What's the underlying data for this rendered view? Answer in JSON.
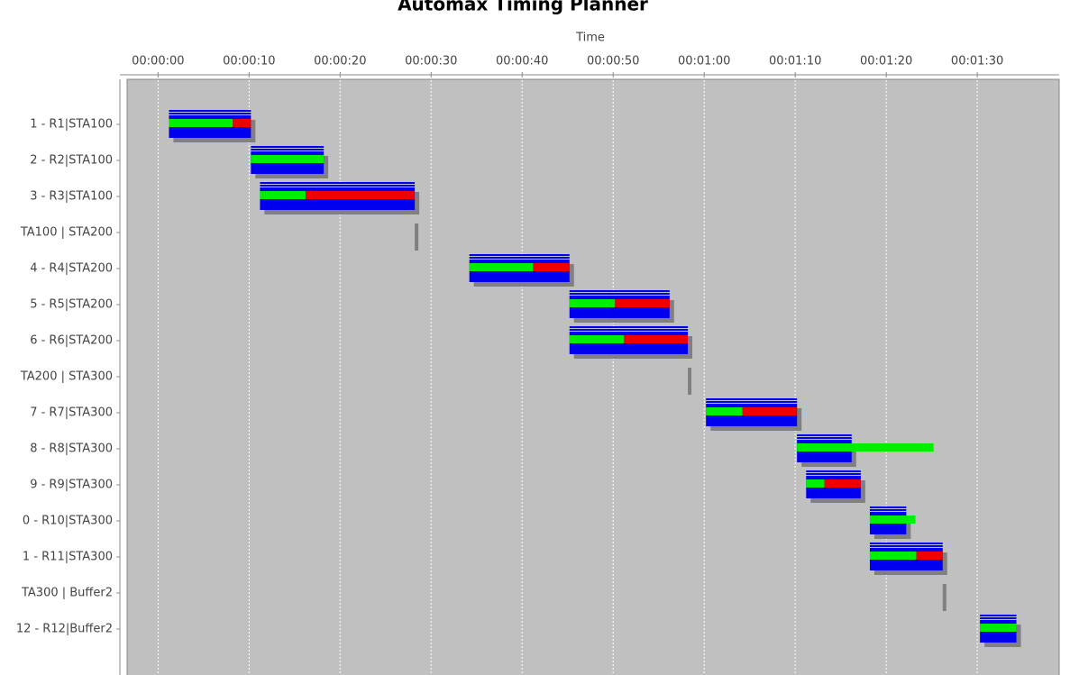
{
  "chart_data": {
    "type": "gantt",
    "title": "Automax Timing Planner",
    "x_label": "Time",
    "categories": [
      "1 - R1|STA100",
      "2 - R2|STA100",
      "3 - R3|STA100",
      "TA100 | STA200",
      "4 - R4|STA200",
      "5 - R5|STA200",
      "6 - R6|STA200",
      "TA200 | STA300",
      "7 - R7|STA300",
      "8 - R8|STA300",
      "9 - R9|STA300",
      "0 - R10|STA300",
      "1 - R11|STA300",
      "TA300 | Buffer2",
      "12 - R12|Buffer2"
    ],
    "starts": [
      1.2,
      10.2,
      11.2,
      28.4,
      34.2,
      45.2,
      45.2,
      58.4,
      60.2,
      70.2,
      71.2,
      78.2,
      78.2,
      86.4,
      90.3
    ],
    "ends": [
      10.2,
      18.2,
      28.2,
      28.4,
      45.2,
      56.2,
      58.2,
      58.4,
      70.2,
      76.2,
      77.2,
      82.2,
      86.2,
      86.4,
      94.3
    ],
    "progress": [
      8.2,
      18.2,
      16.2,
      null,
      41.2,
      50.2,
      51.2,
      null,
      64.2,
      85.2,
      73.2,
      83.2,
      83.3,
      null,
      94.3
    ],
    "colors": {
      "plan": "#0000ee",
      "done": "#00ee00",
      "late": "#ee0000",
      "marker": "#808080"
    },
    "xlim": [
      -3.4,
      99
    ],
    "xticks": [
      {
        "value": 0,
        "label": "00:00:00"
      },
      {
        "value": 10,
        "label": "00:00:10"
      },
      {
        "value": 20,
        "label": "00:00:20"
      },
      {
        "value": 30,
        "label": "00:00:30"
      },
      {
        "value": 40,
        "label": "00:00:40"
      },
      {
        "value": 50,
        "label": "00:00:50"
      },
      {
        "value": 60,
        "label": "00:01:00"
      },
      {
        "value": 70,
        "label": "00:01:10"
      },
      {
        "value": 80,
        "label": "00:01:20"
      },
      {
        "value": 90,
        "label": "00:01:30"
      }
    ],
    "grid": true
  }
}
